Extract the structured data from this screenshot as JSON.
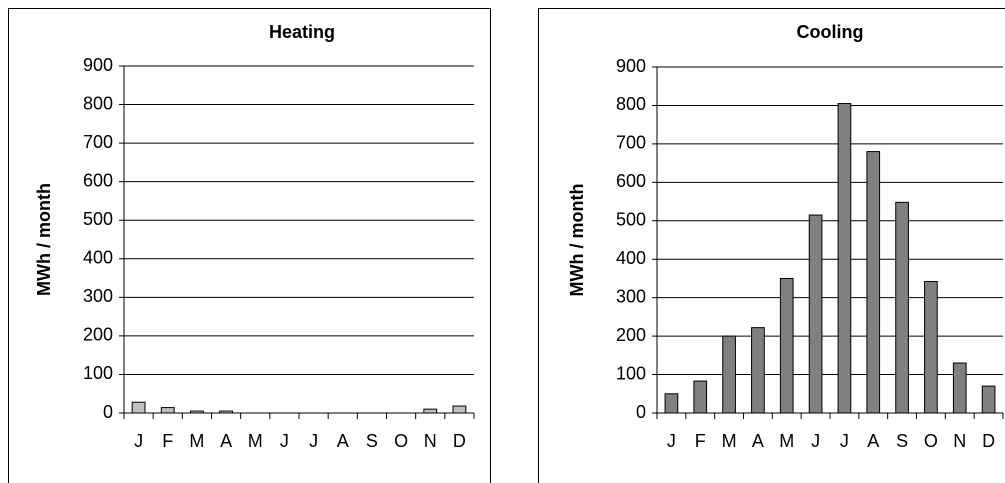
{
  "chart_data": [
    {
      "type": "bar",
      "title": "Heating",
      "y_label": "MWh / month",
      "categories": [
        "J",
        "F",
        "M",
        "A",
        "M",
        "J",
        "J",
        "A",
        "S",
        "O",
        "N",
        "D"
      ],
      "values": [
        28,
        14,
        5,
        5,
        0,
        0,
        0,
        0,
        0,
        0,
        10,
        18
      ],
      "color": "#c0c0c0",
      "ylim": [
        0,
        900
      ],
      "yticks": [
        0,
        100,
        200,
        300,
        400,
        500,
        600,
        700,
        800,
        900
      ],
      "grid": true
    },
    {
      "type": "bar",
      "title": "Cooling",
      "y_label": "MWh / month",
      "categories": [
        "J",
        "F",
        "M",
        "A",
        "M",
        "J",
        "J",
        "A",
        "S",
        "O",
        "N",
        "D"
      ],
      "values": [
        50,
        83,
        200,
        222,
        350,
        515,
        805,
        680,
        548,
        342,
        130,
        70
      ],
      "color": "#808080",
      "ylim": [
        0,
        900
      ],
      "yticks": [
        0,
        100,
        200,
        300,
        400,
        500,
        600,
        700,
        800,
        900
      ],
      "grid": true
    }
  ]
}
